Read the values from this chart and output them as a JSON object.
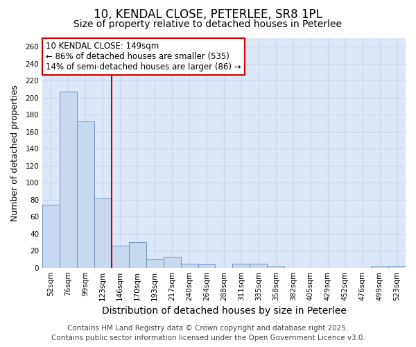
{
  "title_line1": "10, KENDAL CLOSE, PETERLEE, SR8 1PL",
  "title_line2": "Size of property relative to detached houses in Peterlee",
  "xlabel": "Distribution of detached houses by size in Peterlee",
  "ylabel": "Number of detached properties",
  "categories": [
    "52sqm",
    "76sqm",
    "99sqm",
    "123sqm",
    "146sqm",
    "170sqm",
    "193sqm",
    "217sqm",
    "240sqm",
    "264sqm",
    "288sqm",
    "311sqm",
    "335sqm",
    "358sqm",
    "382sqm",
    "405sqm",
    "429sqm",
    "452sqm",
    "476sqm",
    "499sqm",
    "523sqm"
  ],
  "values": [
    74,
    207,
    172,
    81,
    26,
    30,
    10,
    13,
    5,
    4,
    0,
    5,
    5,
    1,
    0,
    0,
    0,
    0,
    0,
    1,
    2
  ],
  "bar_color": "#c8d8ee",
  "bar_edge_color": "#7090c8",
  "vline_color": "#cc0000",
  "vline_x_index": 4,
  "annotation_line1": "10 KENDAL CLOSE: 149sqm",
  "annotation_line2": "← 86% of detached houses are smaller (535)",
  "annotation_line3": "14% of semi-detached houses are larger (86) →",
  "annotation_box_facecolor": "#ffffff",
  "annotation_box_edgecolor": "#cc0000",
  "ylim": [
    0,
    270
  ],
  "yticks": [
    0,
    20,
    40,
    60,
    80,
    100,
    120,
    140,
    160,
    180,
    200,
    220,
    240,
    260
  ],
  "grid_color": "#c8d4e8",
  "plot_bg_color": "#dce8f8",
  "fig_bg_color": "#ffffff",
  "title1_fontsize": 12,
  "title2_fontsize": 10,
  "xlabel_fontsize": 10,
  "ylabel_fontsize": 9,
  "tick_fontsize": 7.5,
  "annotation_fontsize": 8.5,
  "footer_fontsize": 7.5,
  "footer_line1": "Contains HM Land Registry data © Crown copyright and database right 2025.",
  "footer_line2": "Contains public sector information licensed under the Open Government Licence v3.0."
}
